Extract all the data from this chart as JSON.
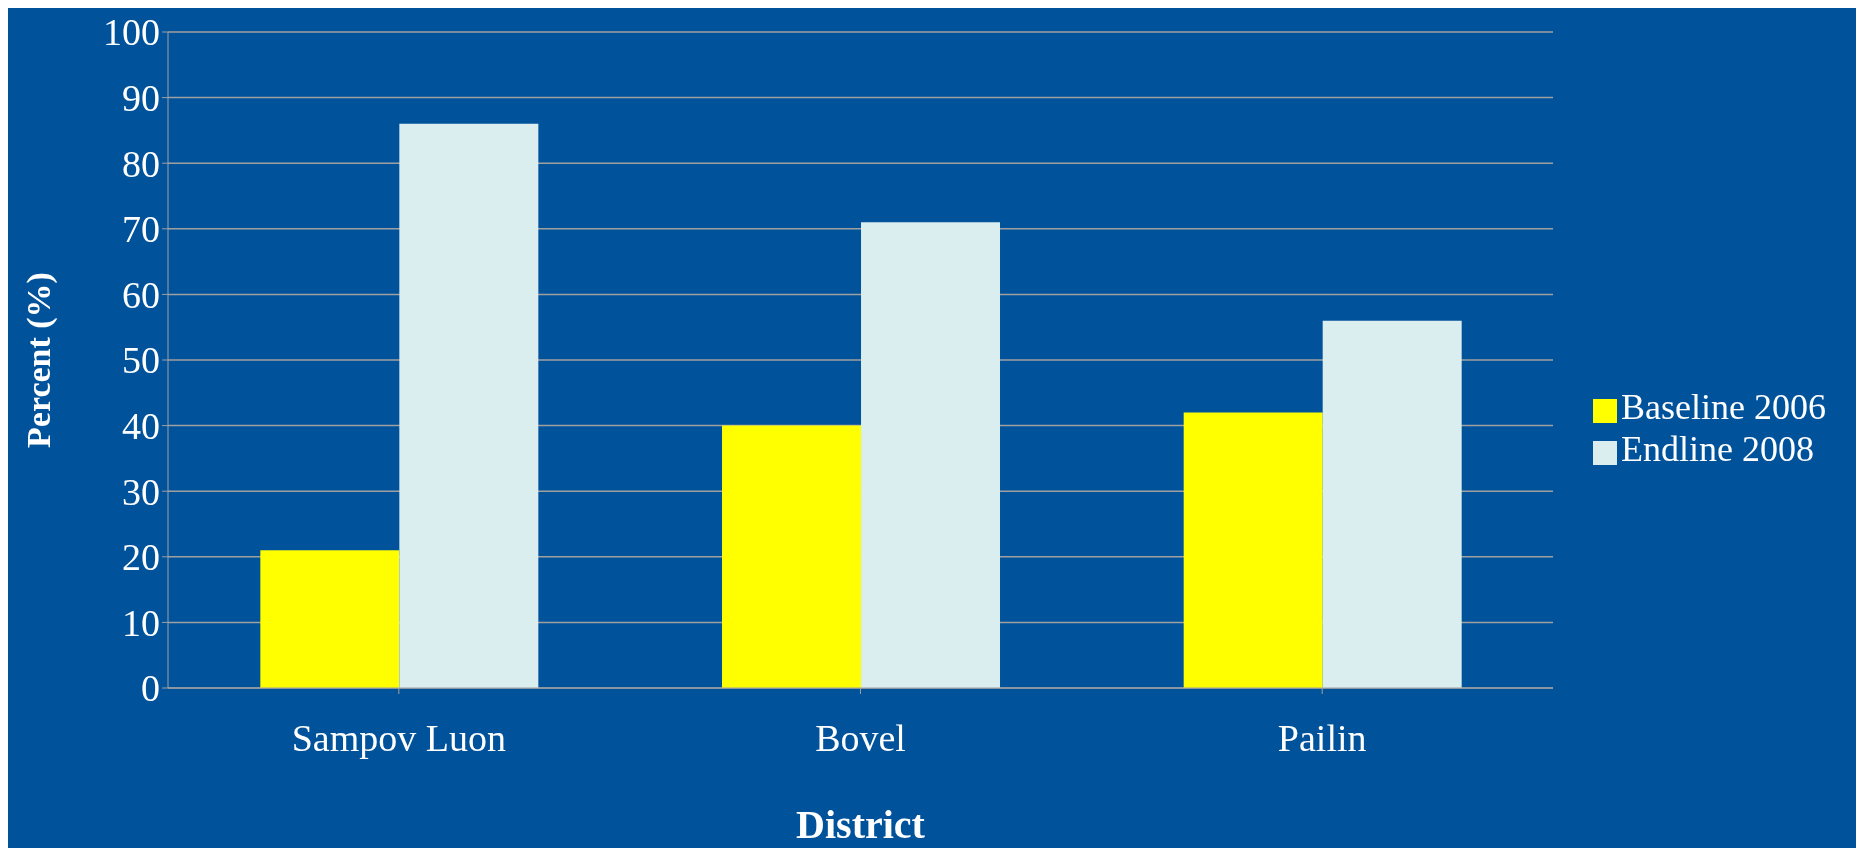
{
  "chart_data": {
    "type": "bar",
    "xlabel": "District",
    "ylabel": "Percent (%)",
    "categories": [
      "Sampov Luon",
      "Bovel",
      "Pailin"
    ],
    "series": [
      {
        "name": "Baseline 2006",
        "color": "#ffff00",
        "values": [
          21,
          40,
          42
        ]
      },
      {
        "name": "Endline 2008",
        "color": "#daedef",
        "values": [
          86,
          71,
          56
        ]
      }
    ],
    "ylim": [
      0,
      100
    ],
    "yticks": [
      0,
      10,
      20,
      30,
      40,
      50,
      60,
      70,
      80,
      90,
      100
    ],
    "grid": "y",
    "legend": "right"
  }
}
